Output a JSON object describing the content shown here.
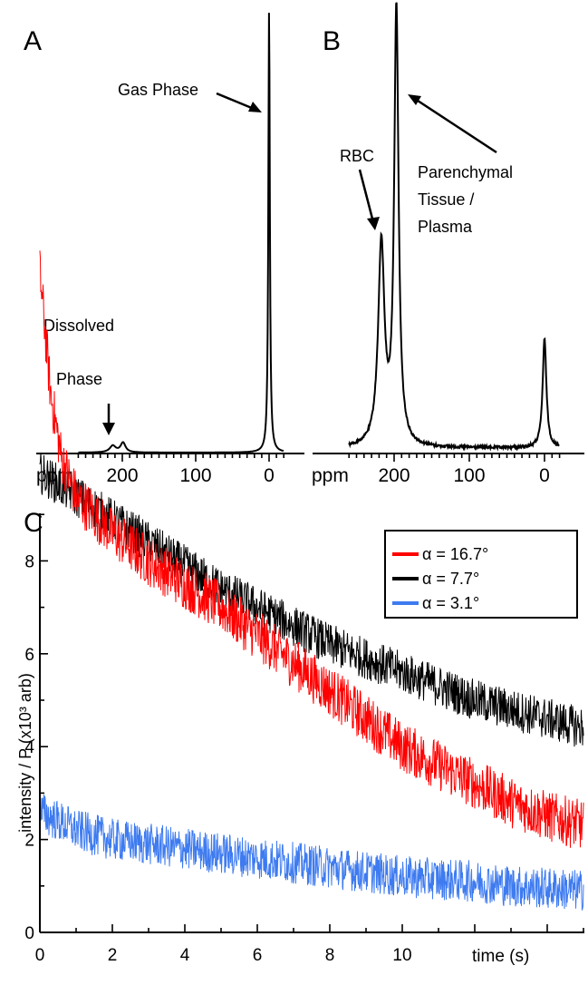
{
  "chart_data": [
    {
      "panel": "A",
      "type": "line",
      "x_tick_labels": [
        "ppm",
        "200",
        "100",
        "0"
      ],
      "x_ticks": [
        200,
        100,
        0
      ],
      "xlim": [
        260,
        -20
      ],
      "x_reversed": true,
      "peaks": [
        {
          "ppm": 213,
          "height": 0.015,
          "width": 5
        },
        {
          "ppm": 199,
          "height": 0.022,
          "width": 4
        },
        {
          "ppm": 0,
          "height": 1.0,
          "width": 1.2
        }
      ],
      "annotations": [
        {
          "text": "Gas Phase"
        },
        {
          "text": "Dissolved"
        },
        {
          "text": "Phase"
        }
      ]
    },
    {
      "panel": "B",
      "type": "line",
      "x_tick_labels": [
        "ppm",
        "200",
        "100",
        "0"
      ],
      "x_ticks": [
        200,
        100,
        0
      ],
      "xlim": [
        260,
        -20
      ],
      "x_reversed": true,
      "peaks": [
        {
          "ppm": 217,
          "height": 0.46,
          "width": 5
        },
        {
          "ppm": 197,
          "height": 1.0,
          "width": 3.5
        },
        {
          "ppm": 0,
          "height": 0.25,
          "width": 3
        }
      ],
      "annotations": [
        {
          "text": "RBC"
        },
        {
          "text": "Parenchymal"
        },
        {
          "text": "Tissue /"
        },
        {
          "text": "Plasma"
        }
      ]
    },
    {
      "panel": "C",
      "type": "line",
      "ylabel": "intensity / P (x10³ arb)",
      "xlabel": "time (s)",
      "x_ticks": [
        0,
        2,
        4,
        6,
        8,
        10
      ],
      "y_ticks": [
        0,
        2,
        4,
        6,
        8
      ],
      "xlim": [
        0,
        15
      ],
      "ylim": [
        0,
        15
      ],
      "series": [
        {
          "name": "α = 16.7°",
          "color": "#ff0000",
          "points": [
            [
              0,
              14.2
            ],
            [
              0.3,
              11.6
            ],
            [
              0.6,
              10.2
            ],
            [
              1,
              9.4
            ],
            [
              2,
              8.6
            ],
            [
              3,
              8.0
            ],
            [
              4,
              7.5
            ],
            [
              5,
              7.0
            ],
            [
              6,
              6.4
            ],
            [
              7,
              5.8
            ],
            [
              8,
              5.2
            ],
            [
              9,
              4.6
            ],
            [
              10,
              4.0
            ],
            [
              11,
              3.6
            ],
            [
              12,
              3.2
            ],
            [
              13,
              2.8
            ],
            [
              14,
              2.5
            ],
            [
              15,
              2.3
            ]
          ]
        },
        {
          "name": "α = 7.7°",
          "color": "#000000",
          "points": [
            [
              0,
              9.9
            ],
            [
              1,
              9.4
            ],
            [
              2,
              8.9
            ],
            [
              3,
              8.4
            ],
            [
              4,
              7.9
            ],
            [
              5,
              7.4
            ],
            [
              6,
              7.0
            ],
            [
              7,
              6.6
            ],
            [
              8,
              6.2
            ],
            [
              9,
              5.9
            ],
            [
              10,
              5.6
            ],
            [
              11,
              5.3
            ],
            [
              12,
              5.0
            ],
            [
              13,
              4.8
            ],
            [
              14,
              4.6
            ],
            [
              15,
              4.4
            ]
          ]
        },
        {
          "name": "α = 3.1°",
          "color": "#3e7bf0",
          "points": [
            [
              0,
              2.6
            ],
            [
              1,
              2.2
            ],
            [
              2,
              2.0
            ],
            [
              3,
              1.9
            ],
            [
              4,
              1.8
            ],
            [
              5,
              1.7
            ],
            [
              6,
              1.6
            ],
            [
              7,
              1.5
            ],
            [
              8,
              1.4
            ],
            [
              9,
              1.3
            ],
            [
              10,
              1.2
            ],
            [
              11,
              1.15
            ],
            [
              12,
              1.1
            ],
            [
              13,
              1.0
            ],
            [
              14,
              0.95
            ],
            [
              15,
              0.9
            ]
          ]
        }
      ],
      "legend_placement": "top-right"
    }
  ]
}
